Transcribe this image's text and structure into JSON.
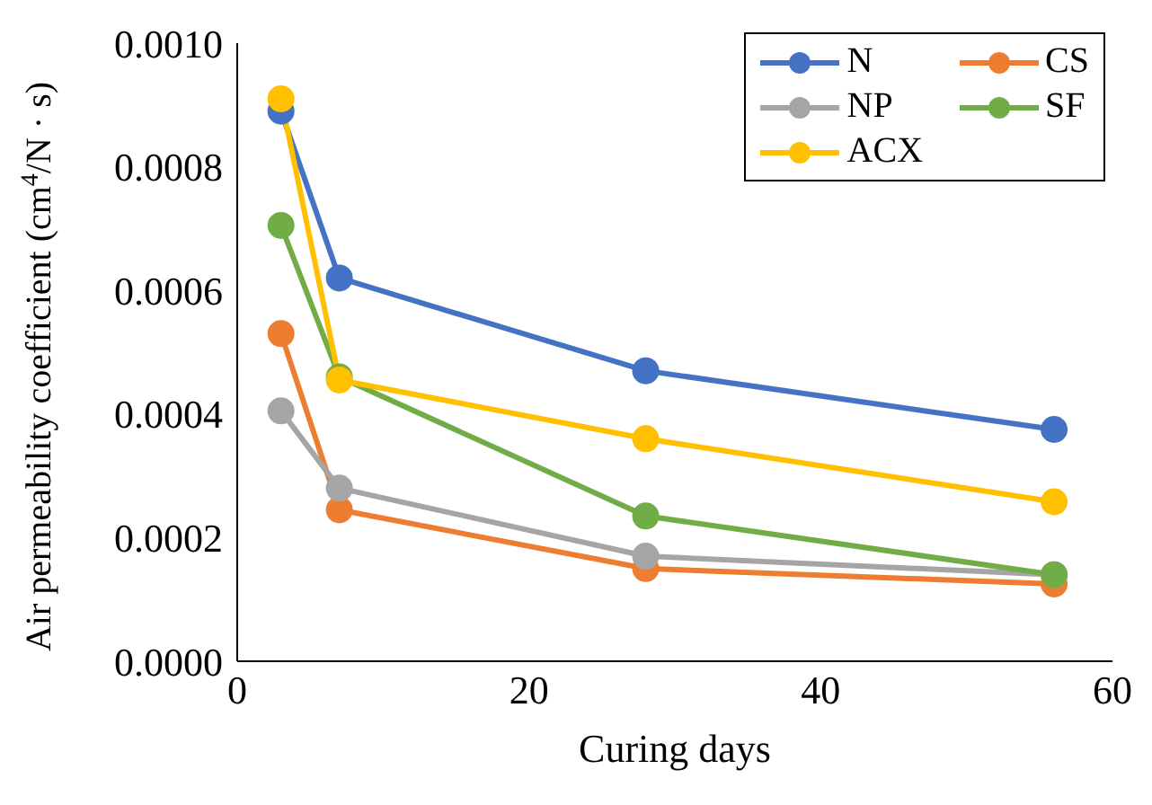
{
  "chart_data": {
    "type": "line",
    "xlabel": "Curing days",
    "ylabel": "Air permeability coefficient (cm$^{4}$/N · s)",
    "x": [
      3,
      7,
      28,
      56
    ],
    "series": [
      {
        "name": "N",
        "color": "#4472c4",
        "values": [
          0.00089,
          0.00062,
          0.00047,
          0.000375
        ]
      },
      {
        "name": "CS",
        "color": "#ed7d31",
        "values": [
          0.00053,
          0.000245,
          0.00015,
          0.000125
        ]
      },
      {
        "name": "NP",
        "color": "#a5a5a5",
        "values": [
          0.000405,
          0.00028,
          0.00017,
          0.00014
        ]
      },
      {
        "name": "SF",
        "color": "#70ad47",
        "values": [
          0.000705,
          0.00046,
          0.000235,
          0.00014
        ]
      },
      {
        "name": "ACX",
        "color": "#ffc000",
        "values": [
          0.00091,
          0.000455,
          0.00036,
          0.000258
        ]
      }
    ],
    "xlim": [
      0,
      60
    ],
    "xticks": [
      0,
      20,
      40,
      60
    ],
    "ylim": [
      0,
      0.001
    ],
    "yticks": [
      {
        "value": 0,
        "label": "0.0000"
      },
      {
        "value": 0.0002,
        "label": "0.0002"
      },
      {
        "value": 0.0004,
        "label": "0.0004"
      },
      {
        "value": 0.0006,
        "label": "0.0006"
      },
      {
        "value": 0.0008,
        "label": "0.0008"
      },
      {
        "value": 0.001,
        "label": "0.0010"
      }
    ],
    "legend": "top right",
    "marker": "circle",
    "line_style": "solid",
    "grid": false
  }
}
